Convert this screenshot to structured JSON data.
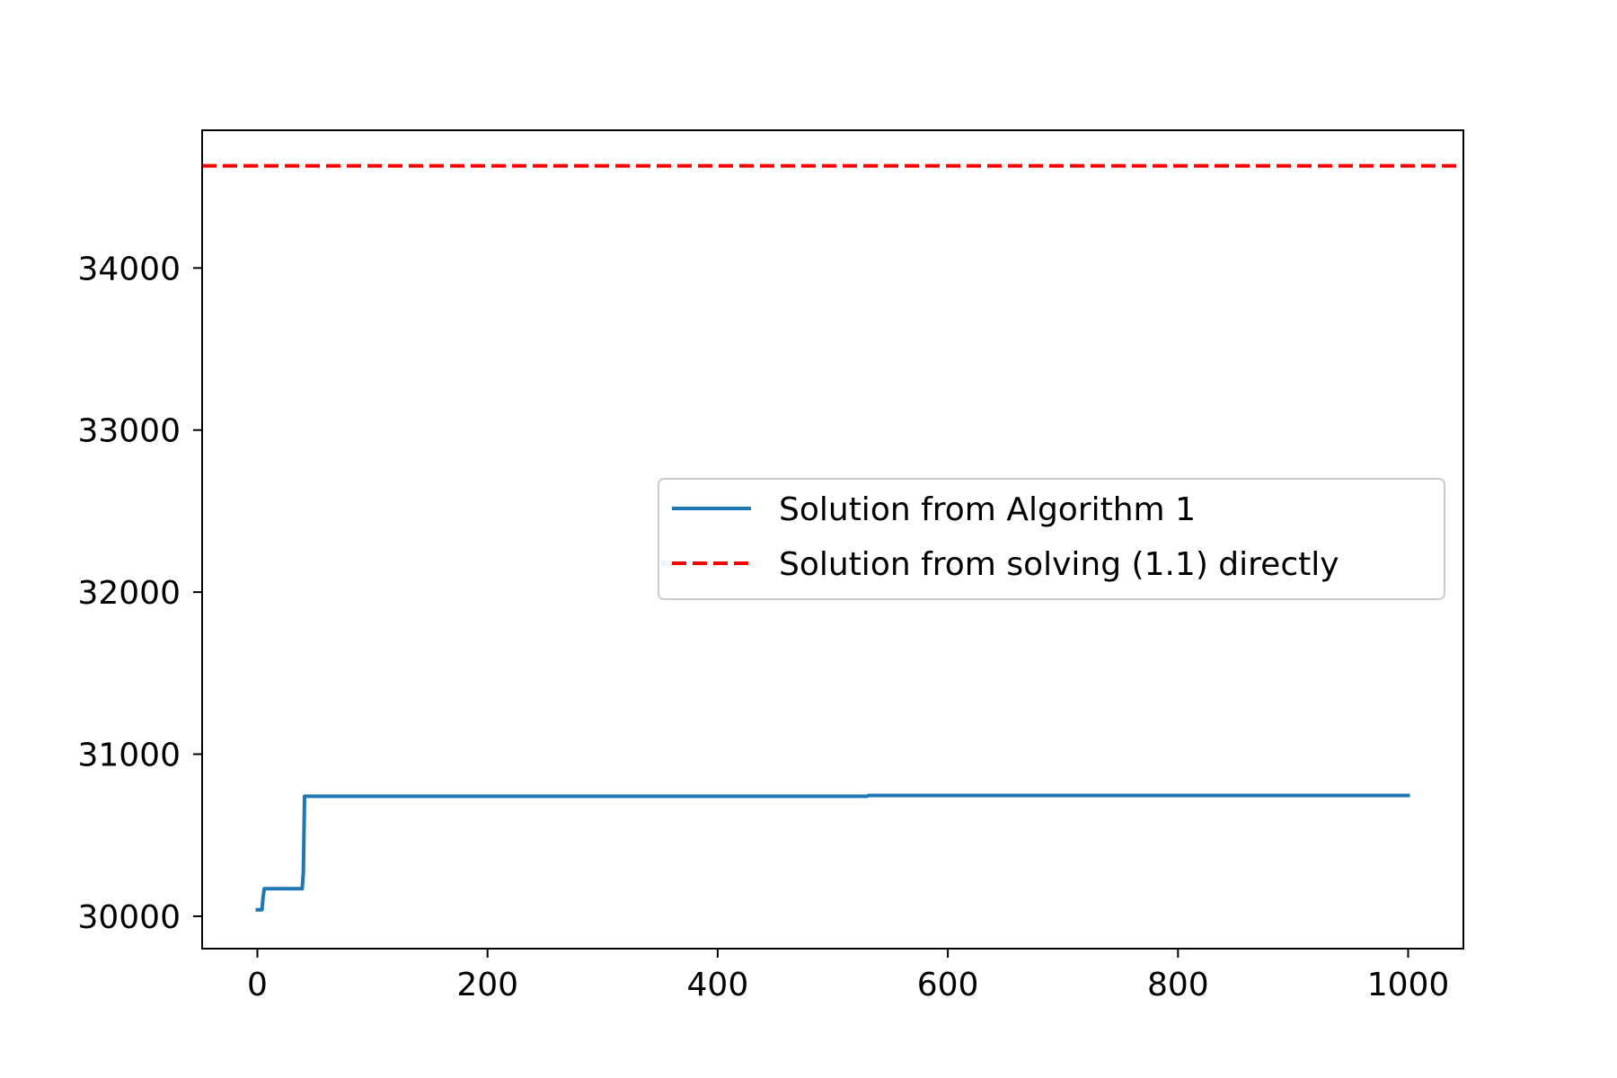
{
  "chart_data": {
    "type": "line",
    "title": "",
    "xlabel": "",
    "ylabel": "",
    "xlim": [
      -48,
      1048
    ],
    "ylim": [
      29800,
      34850
    ],
    "x_ticks": [
      0,
      200,
      400,
      600,
      800,
      1000
    ],
    "x_tick_labels": [
      "0",
      "200",
      "400",
      "600",
      "800",
      "1000"
    ],
    "y_ticks": [
      30000,
      31000,
      32000,
      33000,
      34000
    ],
    "y_tick_labels": [
      "30000",
      "31000",
      "32000",
      "33000",
      "34000"
    ],
    "grid": false,
    "legend": {
      "placement": "center-right"
    },
    "series": [
      {
        "name": "Solution from Algorithm 1",
        "color": "#1f77b4",
        "style": "solid",
        "x": [
          0,
          4,
          5,
          6,
          39,
          40,
          41,
          42,
          530,
          531,
          1000
        ],
        "y": [
          30040,
          30040,
          30120,
          30170,
          30170,
          30270,
          30740,
          30740,
          30740,
          30745,
          30745
        ]
      },
      {
        "name": "Solution from solving (1.1) directly",
        "color": "#ff0000",
        "style": "dashed",
        "hline": 34630
      }
    ]
  }
}
